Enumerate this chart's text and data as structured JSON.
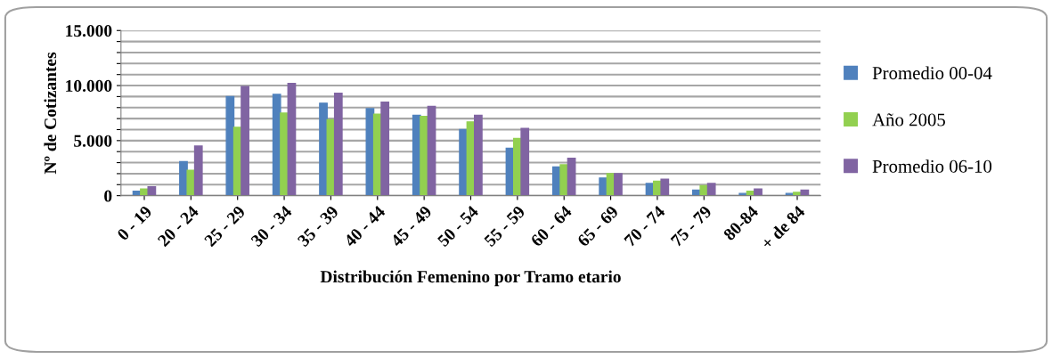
{
  "chart_data": {
    "type": "bar",
    "xlabel": "Distribución Femenino por Tramo etario",
    "ylabel": "Nº de Cotizantes",
    "categories": [
      "0 - 19",
      "20 - 24",
      "25 - 29",
      "30 - 34",
      "35 - 39",
      "40 - 44",
      "45 - 49",
      "50 - 54",
      "55 - 59",
      "60 - 64",
      "65 - 69",
      "70 - 74",
      "75 - 79",
      "80-84",
      "+ de 84"
    ],
    "series": [
      {
        "name": "Promedio 00-04",
        "color": "#4f81bd",
        "values": [
          400,
          3100,
          9000,
          9200,
          8400,
          7900,
          7300,
          6000,
          4300,
          2600,
          1600,
          1100,
          500,
          200,
          200
        ]
      },
      {
        "name": "Año 2005",
        "color": "#92d050",
        "values": [
          600,
          2300,
          6200,
          7500,
          6900,
          7400,
          7200,
          6700,
          5200,
          2800,
          2000,
          1300,
          900,
          400,
          300
        ]
      },
      {
        "name": "Promedio 06-10",
        "color": "#8064a2",
        "values": [
          800,
          4500,
          9900,
          10200,
          9300,
          8500,
          8100,
          7300,
          6100,
          3400,
          2000,
          1500,
          1100,
          600,
          500
        ]
      }
    ],
    "ylim": [
      0,
      15000
    ],
    "yticks": [
      {
        "value": 0,
        "label": "0"
      },
      {
        "value": 1000,
        "label": null
      },
      {
        "value": 2000,
        "label": null
      },
      {
        "value": 3000,
        "label": null
      },
      {
        "value": 4000,
        "label": null
      },
      {
        "value": 5000,
        "label": "5.000"
      },
      {
        "value": 6000,
        "label": null
      },
      {
        "value": 7000,
        "label": null
      },
      {
        "value": 8000,
        "label": null
      },
      {
        "value": 9000,
        "label": null
      },
      {
        "value": 10000,
        "label": "10.000"
      },
      {
        "value": 11000,
        "label": null
      },
      {
        "value": 12000,
        "label": null
      },
      {
        "value": 13000,
        "label": null
      },
      {
        "value": 14000,
        "label": null
      },
      {
        "value": 15000,
        "label": "15.000"
      }
    ],
    "grid": "y",
    "legend": "right"
  }
}
